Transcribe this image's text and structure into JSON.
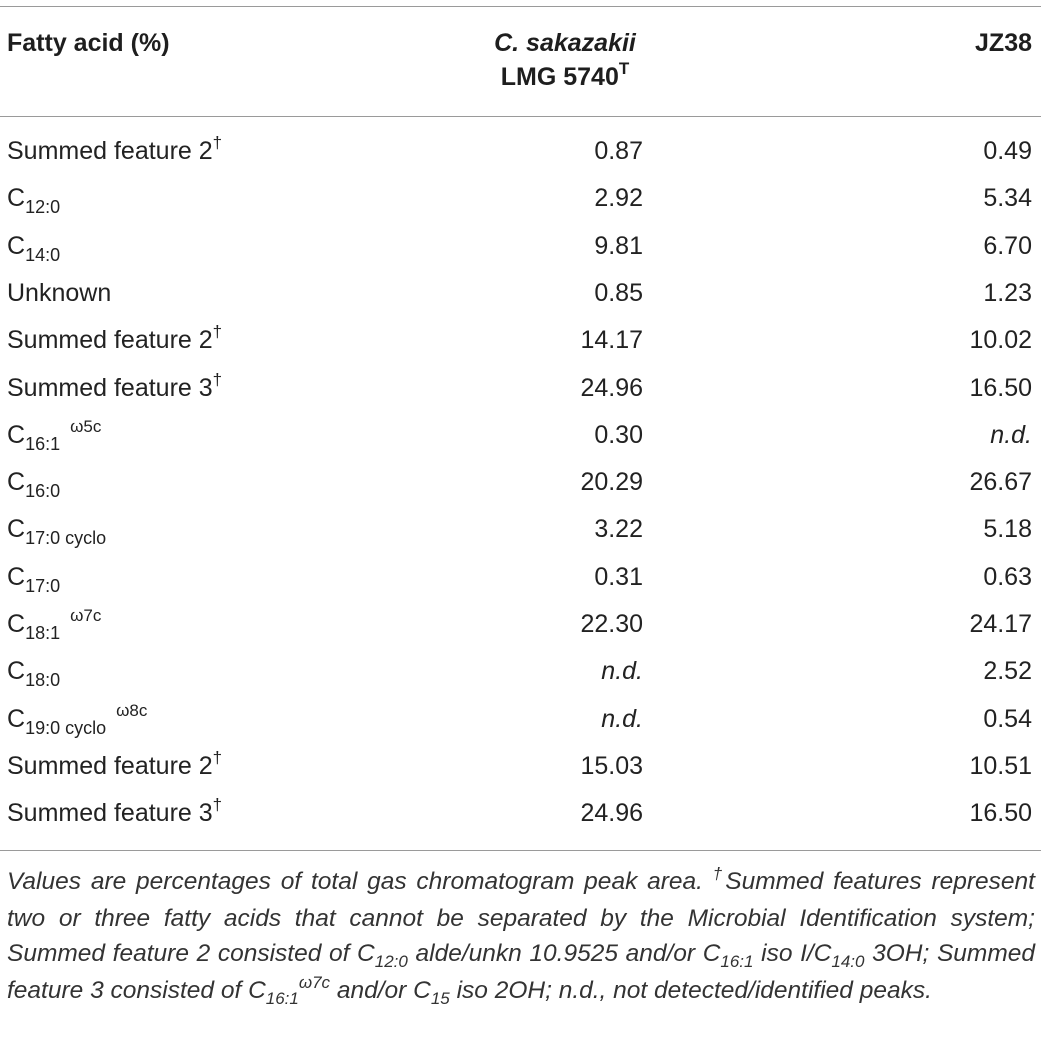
{
  "table": {
    "headers": {
      "col1": "Fatty acid (%)",
      "col2_line1": "C. sakazakii",
      "col2_line2": "LMG 5740",
      "col2_sup": "T",
      "col3": "JZ38"
    },
    "rows": [
      {
        "name": "Summed feature 2",
        "sub": "",
        "sup": "†",
        "v1": "0.87",
        "v2": "0.49"
      },
      {
        "name": "C",
        "sub": "12:0",
        "sup": "",
        "v1": "2.92",
        "v2": "5.34"
      },
      {
        "name": "C",
        "sub": "14:0",
        "sup": "",
        "v1": "9.81",
        "v2": "6.70"
      },
      {
        "name": "Unknown",
        "sub": "",
        "sup": "",
        "v1": "0.85",
        "v2": "1.23"
      },
      {
        "name": "Summed feature 2",
        "sub": "",
        "sup": "†",
        "v1": "14.17",
        "v2": "10.02"
      },
      {
        "name": "Summed feature 3",
        "sub": "",
        "sup": "†",
        "v1": "24.96",
        "v2": "16.50"
      },
      {
        "name": "C",
        "sub": "16:1",
        "sup": "ω5c",
        "v1": "0.30",
        "v2": "n.d."
      },
      {
        "name": "C",
        "sub": "16:0",
        "sup": "",
        "v1": "20.29",
        "v2": "26.67"
      },
      {
        "name": "C",
        "sub": "17:0 cyclo",
        "sup": "",
        "v1": "3.22",
        "v2": "5.18"
      },
      {
        "name": "C",
        "sub": "17:0",
        "sup": "",
        "v1": "0.31",
        "v2": "0.63"
      },
      {
        "name": "C",
        "sub": "18:1",
        "sup": "ω7c",
        "v1": "22.30",
        "v2": "24.17"
      },
      {
        "name": "C",
        "sub": "18:0",
        "sup": "",
        "v1": "n.d.",
        "v2": "2.52"
      },
      {
        "name": "C",
        "sub": "19:0 cyclo",
        "sup": "ω8c",
        "v1": "n.d.",
        "v2": "0.54"
      },
      {
        "name": "Summed feature 2",
        "sub": "",
        "sup": "†",
        "v1": "15.03",
        "v2": "10.51"
      },
      {
        "name": "Summed feature 3",
        "sub": "",
        "sup": "†",
        "v1": "24.96",
        "v2": "16.50"
      }
    ]
  },
  "footnote": {
    "t1": "Values are percentages of total gas chromatogram peak area. ",
    "dagger": "†",
    "t2": "Summed features represent two or three fatty acids that cannot be separated by the Microbial Identification system; Summed feature 2 consisted of C",
    "s1": "12:0",
    "t3": " alde/unkn 10.9525 and/or C",
    "s2": "16:1",
    "t4": " iso I/C",
    "s3": "14:0",
    "t5": " 3OH; Summed feature 3 consisted of C",
    "s4": "16:1",
    "sup1": "ω7c",
    "t6": " and/or C",
    "s5": "15",
    "t7": " iso 2OH; n.d., not detected/identified peaks."
  }
}
